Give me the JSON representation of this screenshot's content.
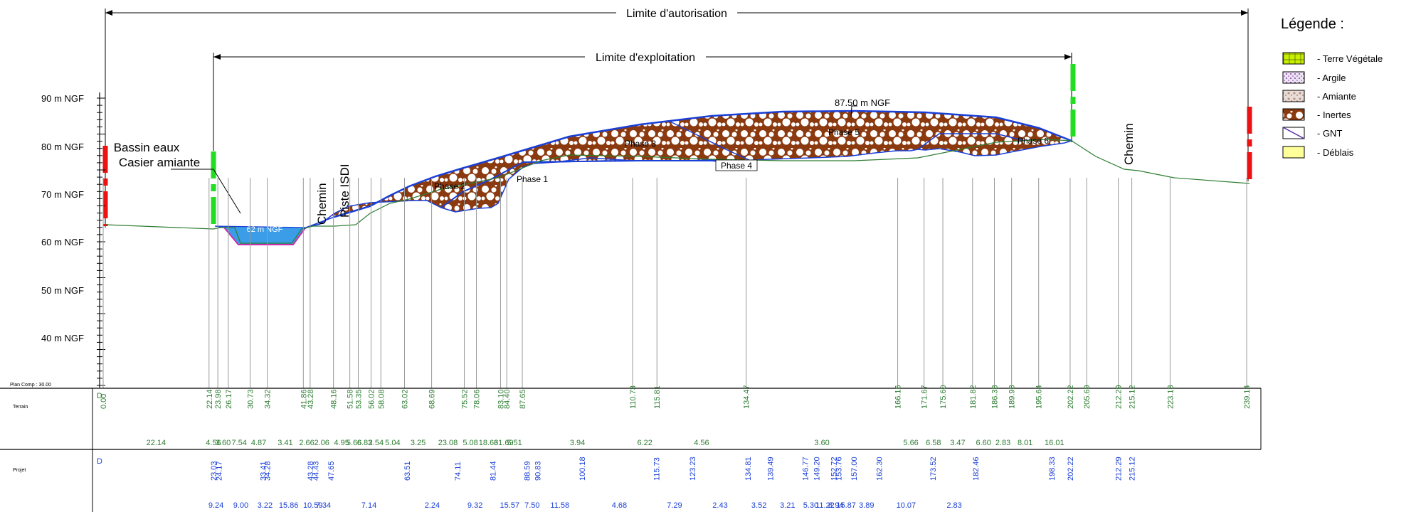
{
  "limits": {
    "autorisation": "Limite d'autorisation",
    "exploitation": "Limite d'exploitation"
  },
  "legend": {
    "title": "Légende :",
    "items": [
      {
        "label": "- Terre Végétale",
        "color": "#c8f000"
      },
      {
        "label": "- Argile",
        "color": "#d9c2e8"
      },
      {
        "label": "- Amiante",
        "color": "#d8c6c0"
      },
      {
        "label": "- Inertes",
        "color": "#8b3a10"
      },
      {
        "label": "- GNT",
        "color": "#ffffff"
      },
      {
        "label": "- Déblais",
        "color": "#ffff99"
      }
    ]
  },
  "axis": {
    "labels": [
      "90 m NGF",
      "80 m NGF",
      "70 m NGF",
      "60 m NGF",
      "50 m NGF",
      "40 m NGF"
    ],
    "plan_comp": "Plan Comp : 30.00"
  },
  "labels": {
    "bassin": "Bassin eaux",
    "casier": "Casier amiante",
    "chemin_left": "Chemin",
    "piste": "Piste ISDI",
    "chemin_right": "Chemin",
    "water_level": "62 m NGF",
    "summit": "87.50 m NGF",
    "phases": [
      "Phase 1",
      "Phase 2",
      "Phase 3",
      "Phase 4",
      "Phase 5",
      "Phase 6"
    ]
  },
  "table": {
    "terrain_label": "Terrain",
    "projet_label": "Projet",
    "terrain_start": "D",
    "projet_start": "D",
    "terrain_stations": [
      "0.00",
      "22.14",
      "23.98",
      "26.17",
      "30.73",
      "34.32",
      "41.86",
      "43.28",
      "48.16",
      "51.58",
      "53.35",
      "56.02",
      "58.08",
      "63.02",
      "68.69",
      "75.52",
      "78.06",
      "83.10",
      "84.40",
      "87.65",
      "110.73",
      "115.81",
      "134.47",
      "166.16",
      "171.67",
      "175.60",
      "181.82",
      "186.38",
      "189.98",
      "195.64",
      "202.22",
      "205.69",
      "212.29",
      "215.12",
      "223.13",
      "239.14"
    ],
    "terrain_distances": [
      "22.14",
      "4.56",
      "3.60",
      "7.54",
      "4.87",
      "3.41",
      "2.66",
      "2.06",
      "4.95",
      "5.66",
      "6.83",
      "2.54",
      "5.04",
      "3.25",
      "23.08",
      "5.08",
      "18.66",
      "31.69",
      "5.51",
      "3.94",
      "6.22",
      "4.56",
      "3.60",
      "5.66",
      "6.58",
      "3.47",
      "6.60",
      "2.83",
      "8.01",
      "16.01"
    ],
    "projet_stations": [
      "23.03",
      "24.17",
      "33.41",
      "34.28",
      "43.28",
      "44.43",
      "47.65",
      "63.51",
      "74.11",
      "81.44",
      "88.59",
      "90.83",
      "100.18",
      "115.73",
      "123.23",
      "134.81",
      "139.49",
      "146.77",
      "149.20",
      "152.72",
      "153.76",
      "157.00",
      "162.30",
      "173.52",
      "182.46",
      "198.33",
      "202.22",
      "212.29",
      "215.12"
    ],
    "projet_distances": [
      "9.24",
      "9.00",
      "3.22",
      "15.86",
      "10.59",
      "7.34",
      "7.14",
      "2.24",
      "9.32",
      "15.57",
      "7.50",
      "11.58",
      "4.68",
      "7.29",
      "2.43",
      "3.52",
      "3.21",
      "5.30",
      "11.22",
      "8.94",
      "15.87",
      "3.89",
      "10.07",
      "2.83"
    ]
  },
  "colors": {
    "green": "#2e7d32",
    "blue": "#1a3fd6",
    "inertes": "#8b3a10",
    "water": "#3b9de8",
    "limit_green": "#22dd22",
    "limit_red": "#ee1111"
  }
}
